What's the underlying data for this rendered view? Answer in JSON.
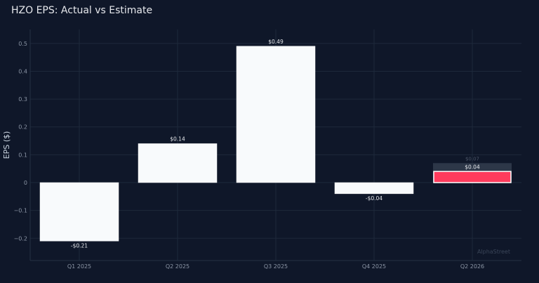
{
  "chart_data": {
    "type": "bar",
    "title": "HZO EPS: Actual vs Estimate",
    "xlabel": "",
    "ylabel": "EPS ($)",
    "ylim": [
      -0.28,
      0.55
    ],
    "yticks": [
      -0.2,
      -0.1,
      0,
      0.1,
      0.2,
      0.3,
      0.4,
      0.5
    ],
    "ytick_labels": [
      "−0.2",
      "−0.1",
      "0",
      "0.1",
      "0.2",
      "0.3",
      "0.4",
      "0.5"
    ],
    "grid": true,
    "categories": [
      "Q1 2025",
      "Q2 2025",
      "Q3 2025",
      "Q4 2025",
      "Q2 2026"
    ],
    "series": [
      {
        "values": [
          -0.21,
          0.14,
          0.49,
          -0.04,
          0.04
        ],
        "labels": [
          "-$0.21",
          "$0.14",
          "$0.49",
          "-$0.04",
          "$0.04"
        ]
      },
      {
        "values": [
          null,
          null,
          null,
          null,
          0.07
        ],
        "labels": [
          null,
          null,
          null,
          null,
          "$0.07"
        ]
      }
    ],
    "colors": {
      "actual": "#f8fafc",
      "upcoming_actual": "#ff3b5c",
      "estimate": "#2d3748",
      "background": "#0f1729",
      "grid": "#1e293b"
    },
    "watermark": "AlphaStreet"
  }
}
